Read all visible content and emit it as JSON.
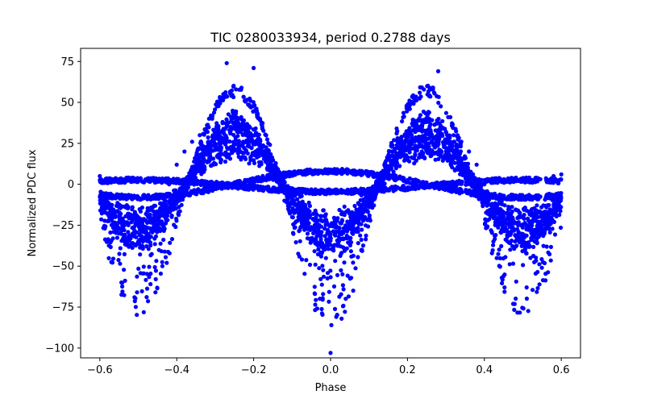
{
  "chart_data": {
    "type": "scatter",
    "title": "TIC 0280033934, period 0.2788 days",
    "xlabel": "Phase",
    "ylabel": "Normalized PDC flux",
    "xlim": [
      -0.65,
      0.65
    ],
    "ylim": [
      -106,
      83
    ],
    "xticks": [
      -0.6,
      -0.4,
      -0.2,
      0.0,
      0.2,
      0.4,
      0.6
    ],
    "xtick_labels": [
      "−0.6",
      "−0.4",
      "−0.2",
      "0.0",
      "0.2",
      "0.4",
      "0.6"
    ],
    "yticks": [
      -100,
      -75,
      -50,
      -25,
      0,
      25,
      50,
      75
    ],
    "ytick_labels": [
      "−100",
      "−75",
      "−50",
      "−25",
      "0",
      "25",
      "50",
      "75"
    ],
    "grid": false,
    "marker_color": "#0000ff",
    "series": [
      {
        "x": [
          -0.6,
          -0.58,
          -0.56,
          -0.54,
          -0.52,
          -0.5,
          -0.48,
          -0.46,
          -0.44,
          -0.42,
          -0.4,
          -0.38,
          -0.36,
          -0.34,
          -0.32,
          -0.3,
          -0.28,
          -0.26,
          -0.24,
          -0.22,
          -0.2,
          -0.18,
          -0.16,
          -0.14,
          -0.12,
          -0.1,
          -0.08,
          -0.06,
          -0.04,
          -0.02,
          0.0,
          0.02,
          0.04,
          0.06,
          0.08,
          0.1,
          0.12,
          0.14,
          0.16,
          0.18,
          0.2,
          0.22,
          0.24,
          0.26,
          0.28,
          0.3,
          0.32,
          0.34,
          0.36,
          0.38,
          0.4,
          0.42,
          0.44,
          0.46,
          0.48,
          0.5,
          0.52,
          0.54,
          0.56,
          0.58,
          0.6
        ],
        "y": [
          5,
          -8,
          -20,
          -28,
          -33,
          -35,
          -32,
          -24,
          -12,
          0,
          12,
          20,
          26,
          30,
          32,
          33,
          33,
          33,
          32,
          30,
          26,
          20,
          12,
          2,
          -10,
          -20,
          -28,
          -33,
          -36,
          -37,
          -37,
          -36,
          -33,
          -28,
          -20,
          -10,
          2,
          12,
          20,
          26,
          30,
          32,
          33,
          33,
          33,
          32,
          30,
          26,
          20,
          12,
          0,
          -12,
          -24,
          -32,
          -35,
          -33,
          -28,
          -20,
          -8,
          5,
          6
        ]
      }
    ],
    "annotations": [
      {
        "x": -0.27,
        "y": 74
      },
      {
        "x": -0.2,
        "y": 71
      },
      {
        "x": 0.28,
        "y": 69
      },
      {
        "x": 0.0,
        "y": -103
      },
      {
        "x": -0.51,
        "y": -69
      },
      {
        "x": 0.51,
        "y": -63
      }
    ]
  }
}
